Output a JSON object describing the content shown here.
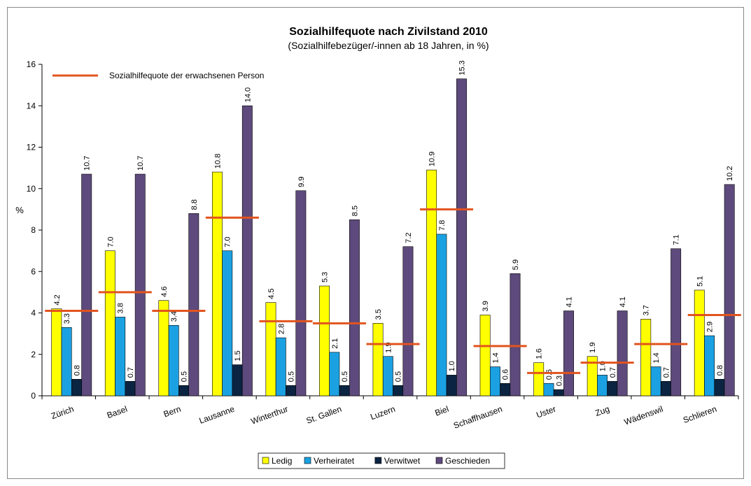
{
  "chart_data": {
    "type": "bar",
    "title": "Sozialhilfequote nach Zivilstand 2010",
    "subtitle": "(Sozialhilfebezüger/-innen ab 18 Jahren, in %)",
    "y_label": "%",
    "categories": [
      "Zürich",
      "Basel",
      "Bern",
      "Lausanne",
      "Winterthur",
      "St. Gallen",
      "Luzern",
      "Biel",
      "Schaffhausen",
      "Uster",
      "Zug",
      "Wädenswil",
      "Schlieren"
    ],
    "series": [
      {
        "name": "Ledig",
        "color": "#ffff00",
        "values": [
          4.2,
          7,
          4.6,
          10.8,
          4.5,
          5.3,
          3.5,
          10.9,
          3.9,
          1.6,
          1.9,
          3.7,
          5.1
        ],
        "value_labels": [
          "4.2",
          "7.0",
          "4.6",
          "10.8",
          "4.5",
          "5.3",
          "3.5",
          "10.9",
          "3.9",
          "1.6",
          "1.9",
          "3.7",
          "5.1"
        ]
      },
      {
        "name": "Verheiratet",
        "color": "#1ba1e2",
        "values": [
          3.3,
          3.8,
          3.4,
          7,
          2.8,
          2.1,
          1.9,
          7.8,
          1.4,
          0.6,
          1,
          1.4,
          2.9
        ],
        "value_labels": [
          "3.3",
          "3.8",
          "3.4",
          "7.0",
          "2.8",
          "2.1",
          "1.9",
          "7.8",
          "1.4",
          "0.6",
          "1.0",
          "1.4",
          "2.9"
        ]
      },
      {
        "name": "Verwitwet",
        "color": "#0b2442",
        "values": [
          0.8,
          0.7,
          0.5,
          1.5,
          0.5,
          0.5,
          0.5,
          1,
          0.6,
          0.3,
          0.7,
          0.7,
          0.8
        ],
        "value_labels": [
          "0.8",
          "0.7",
          "0.5",
          "1.5",
          "0.5",
          "0.5",
          "0.5",
          "1.0",
          "0.6",
          "0.3",
          "0.7",
          "0.7",
          "0.8"
        ]
      },
      {
        "name": "Geschieden",
        "color": "#5e4a7c",
        "values": [
          10.7,
          10.7,
          8.8,
          14,
          9.9,
          8.5,
          7.2,
          15.3,
          5.9,
          4.1,
          4.1,
          7.1,
          10.2
        ],
        "value_labels": [
          "10.7",
          "10.7",
          "8.8",
          "14.0",
          "9.9",
          "8.5",
          "7.2",
          "15.3",
          "5.9",
          "4.1",
          "4.1",
          "7.1",
          "10.2"
        ]
      },
      {
        "name": "Sozialhilfequote der erwachsenen Person",
        "type": "dash",
        "color": "#e2541e",
        "values": [
          4.1,
          5,
          4.1,
          8.6,
          3.6,
          3.5,
          2.5,
          9,
          2.4,
          1.1,
          1.6,
          2.5,
          3.9
        ]
      }
    ],
    "ylim": [
      0,
      16
    ],
    "yticks": [
      0,
      2,
      4,
      6,
      8,
      10,
      12,
      14,
      16
    ],
    "grid": false,
    "legend": "bottom"
  }
}
